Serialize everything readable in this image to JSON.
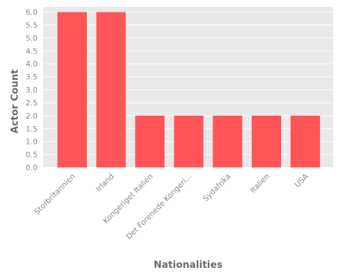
{
  "chart_data": {
    "type": "bar",
    "categories": [
      "Storbritannien",
      "Irland",
      "Kongeriget Italien",
      "Det Forenede Kongeri...",
      "Sydafrika",
      "Italien",
      "USA"
    ],
    "values": [
      6,
      6,
      2,
      2,
      2,
      2,
      2
    ],
    "xlabel": "Nationalities",
    "ylabel": "Actor Count",
    "ylim": [
      0,
      6.2
    ],
    "yticks": [
      "0.0",
      "0.5",
      "1.0",
      "1.5",
      "2.0",
      "2.5",
      "3.0",
      "3.5",
      "4.0",
      "4.5",
      "5.0",
      "5.5",
      "6.0"
    ],
    "grid": true,
    "legend": "none",
    "colors": {
      "bar": "#ff5558",
      "panel": "#e9e9e9",
      "grid": "#ffffff"
    }
  }
}
